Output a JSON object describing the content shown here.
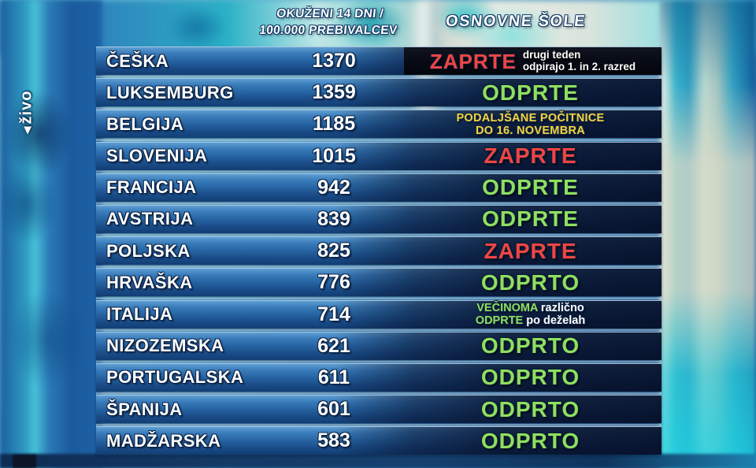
{
  "live_badge": {
    "icon": "live-arrow-icon",
    "label": "živo"
  },
  "colors": {
    "open_green": "#8fdf5f",
    "closed_red": "#ef4545",
    "note_yellow": "#f5d23f",
    "row_blue_top": "#5f9fd4",
    "row_blue_bottom": "#123e74",
    "status_dark_navy": "#081530",
    "text_white": "#ffffff"
  },
  "chart_data": {
    "type": "table",
    "headers": {
      "infections_line1": "OKUŽENI 14 DNI /",
      "infections_line2": "100.000 PREBIVALCEV",
      "schools": "OSNOVNE ŠOLE"
    },
    "rows": [
      {
        "country": "ČEŠKA",
        "value": "1370",
        "status": "ZAPRTE",
        "status_kind": "closed",
        "dark_box": true,
        "note_lines": [
          "drugi teden",
          "odpirajo 1. in 2. razred"
        ]
      },
      {
        "country": "LUKSEMBURG",
        "value": "1359",
        "status": "ODPRTE",
        "status_kind": "open"
      },
      {
        "country": "BELGIJA",
        "value": "1185",
        "note_yellow_lines": [
          "PODALJŠANE POČITNICE",
          "DO 16. NOVEMBRA"
        ]
      },
      {
        "country": "SLOVENIJA",
        "value": "1015",
        "status": "ZAPRTE",
        "status_kind": "closed"
      },
      {
        "country": "FRANCIJA",
        "value": "942",
        "status": "ODPRTE",
        "status_kind": "open"
      },
      {
        "country": "AVSTRIJA",
        "value": "839",
        "status": "ODPRTE",
        "status_kind": "open"
      },
      {
        "country": "POLJSKA",
        "value": "825",
        "status": "ZAPRTE",
        "status_kind": "closed"
      },
      {
        "country": "HRVAŠKA",
        "value": "776",
        "status": "ODPRTO",
        "status_kind": "open"
      },
      {
        "country": "ITALIJA",
        "value": "714",
        "mixed_lines": [
          [
            {
              "text": "VEČINOMA",
              "color": "green"
            },
            {
              "text": "različno",
              "color": "white"
            }
          ],
          [
            {
              "text": "ODPRTE",
              "color": "green"
            },
            {
              "text": "po deželah",
              "color": "white"
            }
          ]
        ]
      },
      {
        "country": "NIZOZEMSKA",
        "value": "621",
        "status": "ODPRTO",
        "status_kind": "open"
      },
      {
        "country": "PORTUGALSKA",
        "value": "611",
        "status": "ODPRTO",
        "status_kind": "open"
      },
      {
        "country": "ŠPANIJA",
        "value": "601",
        "status": "ODPRTO",
        "status_kind": "open"
      },
      {
        "country": "MADŽARSKA",
        "value": "583",
        "status": "ODPRTO",
        "status_kind": "open"
      }
    ]
  }
}
